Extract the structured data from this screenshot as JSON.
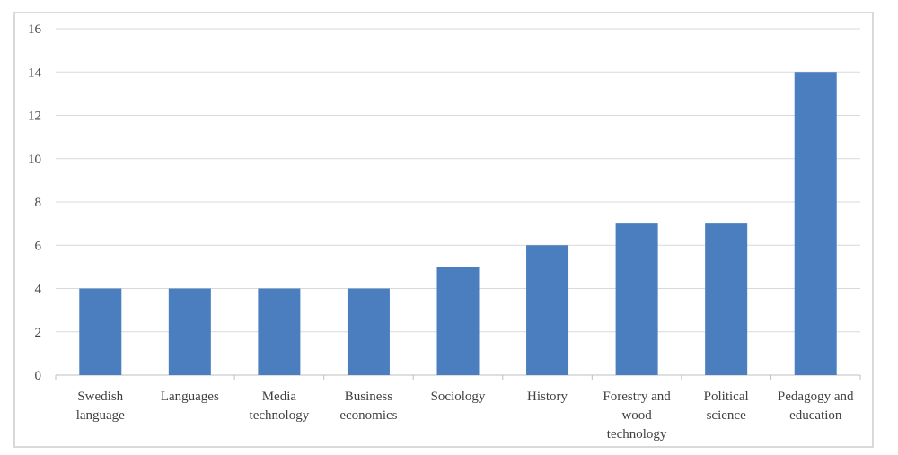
{
  "chart_data": {
    "type": "bar",
    "categories": [
      [
        "Swedish",
        "language"
      ],
      [
        "Languages"
      ],
      [
        "Media",
        "technology"
      ],
      [
        "Business",
        "economics"
      ],
      [
        "Sociology"
      ],
      [
        "History"
      ],
      [
        "Forestry and",
        "wood",
        "technology"
      ],
      [
        "Political",
        "science"
      ],
      [
        "Pedagogy and",
        "education"
      ]
    ],
    "values": [
      4,
      4,
      4,
      4,
      5,
      6,
      7,
      7,
      14
    ],
    "yticks": [
      "0",
      "2",
      "4",
      "6",
      "8",
      "10",
      "12",
      "14",
      "16"
    ],
    "ylim": [
      0,
      16
    ],
    "title": "",
    "xlabel": "",
    "ylabel": "",
    "grid": true,
    "colors": {
      "bar": "#4a7ebf",
      "grid": "#d9d9d9",
      "axis": "#bfbfbf",
      "text": "#404040"
    }
  }
}
